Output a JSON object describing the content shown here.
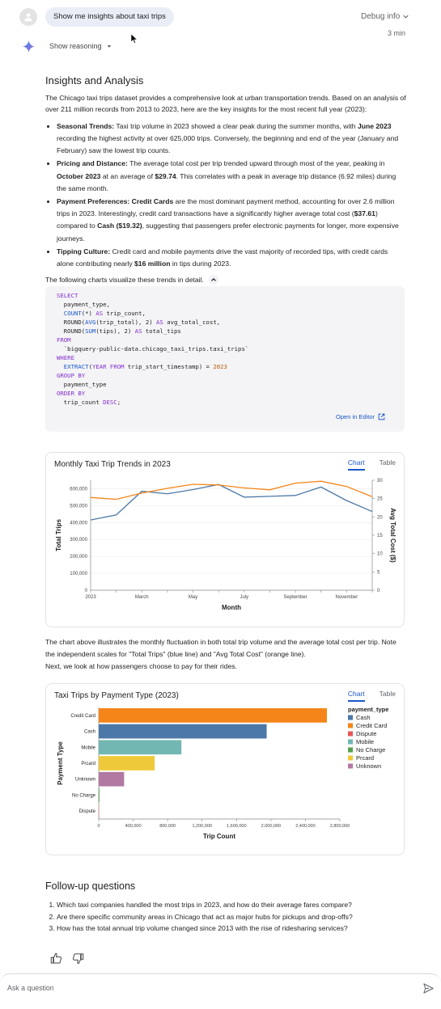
{
  "header": {
    "prompt": "Show me insights about taxi trips",
    "debug_label": "Debug info",
    "time": "3 min",
    "reasoning_label": "Show reasoning"
  },
  "insights": {
    "title": "Insights and Analysis",
    "intro": "The Chicago taxi trips dataset provides a comprehensive look at urban transportation trends. Based on an analysis of over 211 million records from 2013 to 2023, here are the key insights for the most recent full year (2023):",
    "bullets": [
      {
        "parts": [
          {
            "t": "Seasonal Trends:",
            "b": true
          },
          {
            "t": " Taxi trip volume in 2023 showed a clear peak during the summer months, with ",
            "b": false
          },
          {
            "t": "June 2023",
            "b": true
          },
          {
            "t": " recording the highest activity at over 625,000 trips. Conversely, the beginning and end of the year (January and February) saw the lowest trip counts.",
            "b": false
          }
        ]
      },
      {
        "parts": [
          {
            "t": "Pricing and Distance:",
            "b": true
          },
          {
            "t": " The average total cost per trip trended upward through most of the year, peaking in ",
            "b": false
          },
          {
            "t": "October 2023",
            "b": true
          },
          {
            "t": " at an average of ",
            "b": false
          },
          {
            "t": "$29.74",
            "b": true
          },
          {
            "t": ". This correlates with a peak in average trip distance (6.92 miles) during the same month.",
            "b": false
          }
        ]
      },
      {
        "parts": [
          {
            "t": "Payment Preferences: Credit Cards",
            "b": true
          },
          {
            "t": " are the most dominant payment method, accounting for over 2.6 million trips in 2023. Interestingly, credit card transactions have a significantly higher average total cost (",
            "b": false
          },
          {
            "t": "$37.61",
            "b": true
          },
          {
            "t": ") compared to ",
            "b": false
          },
          {
            "t": "Cash ($19.32)",
            "b": true
          },
          {
            "t": ", suggesting that passengers prefer electronic payments for longer, more expensive journeys.",
            "b": false
          }
        ]
      },
      {
        "parts": [
          {
            "t": "Tipping Culture:",
            "b": true
          },
          {
            "t": " Credit card and mobile payments drive the vast majority of recorded tips, with credit cards alone contributing nearly ",
            "b": false
          },
          {
            "t": "$16 million",
            "b": true
          },
          {
            "t": " in tips during 2023.",
            "b": false
          }
        ]
      }
    ],
    "charts_intro": "The following charts visualize these trends in detail."
  },
  "code": {
    "lines": [
      [
        {
          "t": "SELECT",
          "c": "kw"
        }
      ],
      [
        {
          "t": "  payment_type,",
          "c": ""
        }
      ],
      [
        {
          "t": "  ",
          "c": ""
        },
        {
          "t": "COUNT",
          "c": "fn"
        },
        {
          "t": "(*) ",
          "c": ""
        },
        {
          "t": "AS",
          "c": "kw"
        },
        {
          "t": " trip_count,",
          "c": ""
        }
      ],
      [
        {
          "t": "  ROUND(",
          "c": ""
        },
        {
          "t": "AVG",
          "c": "fn"
        },
        {
          "t": "(trip_total), 2) ",
          "c": ""
        },
        {
          "t": "AS",
          "c": "kw"
        },
        {
          "t": " avg_total_cost,",
          "c": ""
        }
      ],
      [
        {
          "t": "  ROUND(",
          "c": ""
        },
        {
          "t": "SUM",
          "c": "fn"
        },
        {
          "t": "(tips), 2) ",
          "c": ""
        },
        {
          "t": "AS",
          "c": "kw"
        },
        {
          "t": " total_tips",
          "c": ""
        }
      ],
      [
        {
          "t": "FROM",
          "c": "kw"
        }
      ],
      [
        {
          "t": "  `bigquery-public-data.chicago_taxi_trips.taxi_trips`",
          "c": ""
        }
      ],
      [
        {
          "t": "WHERE",
          "c": "kw"
        }
      ],
      [
        {
          "t": "  ",
          "c": ""
        },
        {
          "t": "EXTRACT",
          "c": "fn"
        },
        {
          "t": "(",
          "c": ""
        },
        {
          "t": "YEAR FROM",
          "c": "kw"
        },
        {
          "t": " trip_start_timestamp) = ",
          "c": ""
        },
        {
          "t": "2023",
          "c": "num"
        }
      ],
      [
        {
          "t": "GROUP BY",
          "c": "kw"
        }
      ],
      [
        {
          "t": "  payment_type",
          "c": ""
        }
      ],
      [
        {
          "t": "ORDER BY",
          "c": "kw"
        }
      ],
      [
        {
          "t": "  trip_count ",
          "c": ""
        },
        {
          "t": "DESC",
          "c": "kw"
        },
        {
          "t": ";",
          "c": ""
        }
      ]
    ],
    "open_editor": "Open in Editor"
  },
  "tabs": {
    "chart": "Chart",
    "table": "Table"
  },
  "chart_data": [
    {
      "type": "line",
      "title": "Monthly Taxi Trip Trends in 2023",
      "xlabel": "Month",
      "ylabel": "Total Trips",
      "y2label": "Avg Total Cost ($)",
      "x": [
        "2023-01",
        "2023-02",
        "2023-03",
        "2023-04",
        "2023-05",
        "2023-06",
        "2023-07",
        "2023-08",
        "2023-09",
        "2023-10",
        "2023-11",
        "2023-12"
      ],
      "x_ticks": [
        {
          "i": 0,
          "label": "2023"
        },
        {
          "i": 2,
          "label": "March"
        },
        {
          "i": 4,
          "label": "May"
        },
        {
          "i": 6,
          "label": "July"
        },
        {
          "i": 8,
          "label": "September"
        },
        {
          "i": 10,
          "label": "November"
        }
      ],
      "ylim": [
        0,
        650000
      ],
      "y_ticks": [
        "0",
        "100,000",
        "200,000",
        "300,000",
        "400,000",
        "500,000",
        "600,000"
      ],
      "y2lim": [
        0,
        30
      ],
      "y2_ticks": [
        "0",
        "5",
        "10",
        "15",
        "20",
        "25",
        "30"
      ],
      "series": [
        {
          "name": "Total Trips",
          "axis": "left",
          "color": "#4c78a8",
          "values": [
            415000,
            445000,
            585000,
            570000,
            595000,
            625000,
            550000,
            555000,
            560000,
            610000,
            530000,
            465000
          ]
        },
        {
          "name": "Avg Total Cost",
          "axis": "right",
          "color": "#f58518",
          "values": [
            25.3,
            24.8,
            26.5,
            27.8,
            28.9,
            28.7,
            27.9,
            27.4,
            29.2,
            29.74,
            28.3,
            25.5
          ]
        }
      ]
    },
    {
      "type": "bar",
      "title": "Taxi Trips by Payment Type (2023)",
      "xlabel": "Trip Count",
      "ylabel": "Payment Type",
      "categories": [
        "Credit Card",
        "Cash",
        "Mobile",
        "Prcard",
        "Unknown",
        "No Charge",
        "Dispute"
      ],
      "values": [
        2650000,
        1950000,
        960000,
        650000,
        295000,
        8000,
        3000
      ],
      "colors": [
        "#f58518",
        "#4c78a8",
        "#72b7b2",
        "#eeca3b",
        "#b279a2",
        "#54a24b",
        "#e45756"
      ],
      "xlim": [
        0,
        2800000
      ],
      "x_ticks": [
        {
          "v": 0,
          "label": "0"
        },
        {
          "v": 400000,
          "label": "400,000"
        },
        {
          "v": 800000,
          "label": "800,000"
        },
        {
          "v": 1200000,
          "label": "1,200,000"
        },
        {
          "v": 1600000,
          "label": "1,600,000"
        },
        {
          "v": 2000000,
          "label": "2,000,000"
        },
        {
          "v": 2400000,
          "label": "2,400,000"
        },
        {
          "v": 2800000,
          "label": "2,800,000"
        }
      ],
      "legend_title": "payment_type",
      "legend": [
        {
          "label": "Cash",
          "color": "#4c78a8"
        },
        {
          "label": "Credit Card",
          "color": "#f58518"
        },
        {
          "label": "Dispute",
          "color": "#e45756"
        },
        {
          "label": "Mobile",
          "color": "#72b7b2"
        },
        {
          "label": "No Charge",
          "color": "#54a24b"
        },
        {
          "label": "Prcard",
          "color": "#eeca3b"
        },
        {
          "label": "Unknown",
          "color": "#b279a2"
        }
      ]
    }
  ],
  "description": {
    "line1": "The chart above illustrates the monthly fluctuation in both total trip volume and the average total cost per trip. Note the independent scales for \"Total Trips\" (blue line) and \"Avg Total Cost\" (orange line).",
    "line2": "Next, we look at how passengers choose to pay for their rides."
  },
  "followup": {
    "title": "Follow-up questions",
    "items": [
      "Which taxi companies handled the most trips in 2023, and how do their average fares compare?",
      "Are there specific community areas in Chicago that act as major hubs for pickups and drop-offs?",
      "How has the total annual trip volume changed since 2013 with the rise of ridesharing services?"
    ]
  },
  "ask": {
    "placeholder": "Ask a question"
  },
  "icons": {
    "avatar": "person-icon",
    "spark": "gemini-spark-icon",
    "chevron": "chevron-down-icon",
    "expand": "chevron-up-icon",
    "open": "open-in-new-icon",
    "like": "thumb-up-icon",
    "dislike": "thumb-down-icon",
    "send": "send-icon"
  }
}
